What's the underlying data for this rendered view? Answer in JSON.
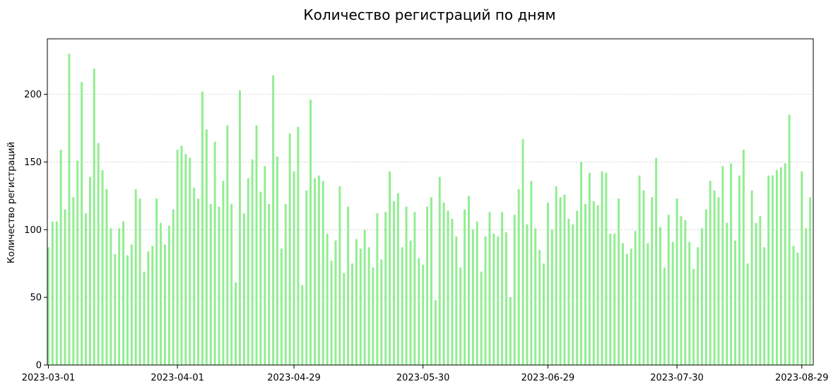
{
  "chart_data": {
    "type": "bar",
    "title": "Количество регистраций по дням",
    "xlabel": "",
    "ylabel": "Количество регистраций",
    "ylim": [
      0,
      241
    ],
    "yticks": [
      0,
      50,
      100,
      150,
      200
    ],
    "grid": "horizontal dotted",
    "bar_color": "#90ee90",
    "x_tick_labels": [
      {
        "label": "2023-03-01",
        "index": 0
      },
      {
        "label": "2023-04-01",
        "index": 31
      },
      {
        "label": "2023-04-29",
        "index": 59
      },
      {
        "label": "2023-05-30",
        "index": 90
      },
      {
        "label": "2023-06-29",
        "index": 120
      },
      {
        "label": "2023-07-30",
        "index": 151
      },
      {
        "label": "2023-08-29",
        "index": 181
      }
    ],
    "x_start": "2023-03-01",
    "x_end": "2023-08-31",
    "values": [
      87,
      106,
      106,
      159,
      115,
      230,
      124,
      151,
      209,
      112,
      139,
      219,
      164,
      144,
      130,
      101,
      82,
      101,
      106,
      81,
      89,
      130,
      123,
      69,
      84,
      88,
      123,
      105,
      89,
      103,
      115,
      159,
      162,
      156,
      153,
      131,
      123,
      202,
      174,
      119,
      165,
      117,
      136,
      177,
      119,
      61,
      203,
      112,
      138,
      152,
      177,
      128,
      147,
      119,
      214,
      154,
      86,
      119,
      171,
      143,
      176,
      59,
      129,
      196,
      138,
      140,
      136,
      97,
      77,
      92,
      132,
      68,
      117,
      75,
      93,
      86,
      100,
      87,
      72,
      112,
      78,
      113,
      143,
      121,
      127,
      87,
      117,
      92,
      113,
      79,
      74,
      117,
      124,
      48,
      139,
      120,
      114,
      108,
      95,
      72,
      115,
      125,
      100,
      106,
      69,
      95,
      113,
      97,
      95,
      113,
      98,
      50,
      111,
      130,
      167,
      104,
      136,
      101,
      85,
      75,
      120,
      100,
      132,
      124,
      126,
      108,
      104,
      114,
      150,
      119,
      142,
      121,
      118,
      143,
      142,
      97,
      97,
      123,
      90,
      82,
      86,
      99,
      140,
      129,
      90,
      124,
      153,
      102,
      72,
      111,
      91,
      123,
      110,
      107,
      91,
      71,
      87,
      101,
      115,
      136,
      129,
      124,
      147,
      105,
      149,
      92,
      140,
      159,
      75,
      129,
      105,
      110,
      87,
      140,
      140,
      144,
      146,
      149,
      185,
      88,
      83,
      143,
      101,
      124
    ]
  }
}
